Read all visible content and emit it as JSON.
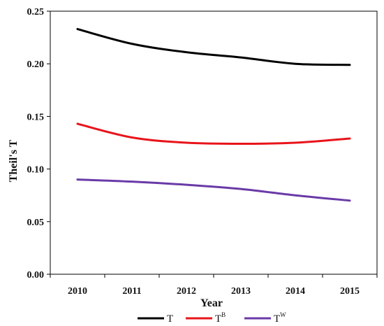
{
  "chart_data": {
    "type": "line",
    "title": "",
    "xlabel": "Year",
    "ylabel": "Theil's T",
    "x": [
      2010,
      2011,
      2012,
      2013,
      2014,
      2015
    ],
    "xlim": [
      2009.5,
      2015.5
    ],
    "ylim": [
      0,
      0.25
    ],
    "yticks": [
      "0.00",
      "0.05",
      "0.10",
      "0.15",
      "0.20",
      "0.25"
    ],
    "xticks": [
      "2010",
      "2011",
      "2012",
      "2013",
      "2014",
      "2015"
    ],
    "grid": false,
    "legend_placement": "bottom",
    "series": [
      {
        "name": "T",
        "sup": "",
        "color": "#000000",
        "values": [
          0.233,
          0.219,
          0.211,
          0.206,
          0.2,
          0.199
        ]
      },
      {
        "name": "T",
        "sup": "B",
        "color": "#e8141b",
        "values": [
          0.143,
          0.13,
          0.125,
          0.124,
          0.125,
          0.129
        ]
      },
      {
        "name": "T",
        "sup": "W",
        "color": "#6a3aa8",
        "values": [
          0.09,
          0.088,
          0.085,
          0.081,
          0.075,
          0.07
        ]
      }
    ]
  }
}
